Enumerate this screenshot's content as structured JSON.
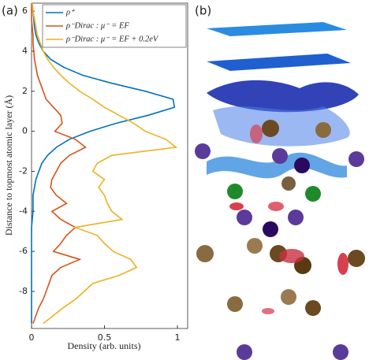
{
  "chart_data": {
    "type": "line",
    "panel_a_label": "(a)",
    "panel_b_label": "(b)",
    "xlabel": "Density (arb. units)",
    "ylabel": "Distance to topmost atomic layer (Å)",
    "xlim": [
      0,
      1.07
    ],
    "xticks": [
      0,
      0.5,
      1
    ],
    "ylim": [
      -9.85,
      6.4
    ],
    "yticks": [
      -8,
      -6,
      -4,
      -2,
      0,
      2,
      4,
      6
    ],
    "y": [
      6.4,
      6.0,
      5.6,
      5.2,
      4.8,
      4.4,
      4.0,
      3.6,
      3.2,
      2.8,
      2.4,
      2.0,
      1.6,
      1.2,
      0.8,
      0.4,
      0.0,
      -0.4,
      -0.8,
      -1.2,
      -1.6,
      -2.0,
      -2.4,
      -2.8,
      -3.2,
      -3.6,
      -4.0,
      -4.4,
      -4.8,
      -5.2,
      -5.6,
      -6.0,
      -6.4,
      -6.8,
      -7.2,
      -7.6,
      -8.0,
      -8.4,
      -8.8,
      -9.2,
      -9.6
    ],
    "series": [
      {
        "name": "ρ⁺",
        "color": "#0072bd",
        "values": [
          0.005,
          0.01,
          0.015,
          0.02,
          0.03,
          0.05,
          0.08,
          0.13,
          0.22,
          0.35,
          0.55,
          0.78,
          0.97,
          0.98,
          0.8,
          0.58,
          0.4,
          0.26,
          0.17,
          0.11,
          0.07,
          0.05,
          0.03,
          0.02,
          0.01,
          0.01,
          0.01,
          0.005,
          0,
          0,
          0,
          0,
          0,
          0,
          0,
          0,
          0,
          0,
          0,
          0,
          0
        ]
      },
      {
        "name": "ρ⁻Dirac : μ⁻ = EF",
        "color": "#d95319",
        "values": [
          0,
          0,
          0,
          0.005,
          0.01,
          0.01,
          0.015,
          0.02,
          0.03,
          0.04,
          0.06,
          0.08,
          0.1,
          0.15,
          0.2,
          0.21,
          0.16,
          0.3,
          0.37,
          0.26,
          0.2,
          0.17,
          0.14,
          0.13,
          0.17,
          0.24,
          0.14,
          0.2,
          0.3,
          0.24,
          0.2,
          0.15,
          0.33,
          0.2,
          0.14,
          0.12,
          0.1,
          0.08,
          0.05,
          0.03,
          0.01
        ]
      },
      {
        "name": "ρ⁻Dirac : μ⁻ = EF + 0.2eV",
        "color": "#edb120",
        "values": [
          0.005,
          0.01,
          0.02,
          0.03,
          0.04,
          0.06,
          0.08,
          0.11,
          0.15,
          0.2,
          0.26,
          0.33,
          0.42,
          0.5,
          0.6,
          0.7,
          0.78,
          0.92,
          0.99,
          0.55,
          0.45,
          0.42,
          0.5,
          0.46,
          0.5,
          0.52,
          0.55,
          0.62,
          0.3,
          0.45,
          0.5,
          0.56,
          0.68,
          0.72,
          0.6,
          0.42,
          0.36,
          0.3,
          0.22,
          0.15,
          0.08
        ]
      }
    ]
  }
}
